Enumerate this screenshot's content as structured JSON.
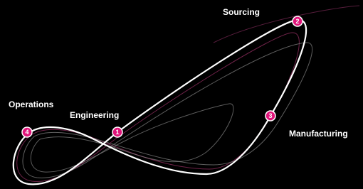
{
  "nodes": [
    {
      "number": "1",
      "label": "Engineering"
    },
    {
      "number": "2",
      "label": "Sourcing"
    },
    {
      "number": "3",
      "label": "Manufacturing"
    },
    {
      "number": "4",
      "label": "Operations"
    }
  ]
}
